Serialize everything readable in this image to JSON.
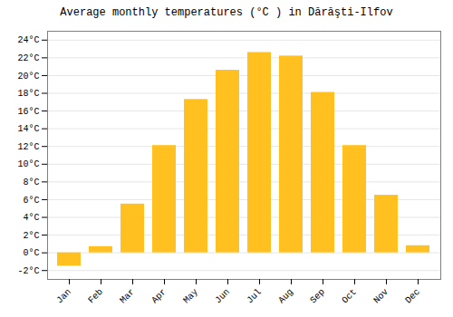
{
  "chart_data": {
    "type": "bar",
    "title": "Average monthly temperatures (°C ) in Dărăşti-Ilfov",
    "categories": [
      "Jan",
      "Feb",
      "Mar",
      "Apr",
      "May",
      "Jun",
      "Jul",
      "Aug",
      "Sep",
      "Oct",
      "Nov",
      "Dec"
    ],
    "values": [
      -1.5,
      0.7,
      5.5,
      12.1,
      17.3,
      20.6,
      22.6,
      22.2,
      18.1,
      12.1,
      6.5,
      0.8
    ],
    "color": "#FFC020",
    "ylim": [
      -3,
      25
    ],
    "yticks": [
      {
        "value": -2,
        "label": "-2°C"
      },
      {
        "value": 0,
        "label": "0°C"
      },
      {
        "value": 2,
        "label": "2°C"
      },
      {
        "value": 4,
        "label": "4°C"
      },
      {
        "value": 6,
        "label": "6°C"
      },
      {
        "value": 8,
        "label": "8°C"
      },
      {
        "value": 10,
        "label": "10°C"
      },
      {
        "value": 12,
        "label": "12°C"
      },
      {
        "value": 14,
        "label": "14°C"
      },
      {
        "value": 16,
        "label": "16°C"
      },
      {
        "value": 18,
        "label": "18°C"
      },
      {
        "value": 20,
        "label": "20°C"
      },
      {
        "value": 22,
        "label": "22°C"
      },
      {
        "value": 24,
        "label": "24°C"
      }
    ],
    "grid": true
  }
}
